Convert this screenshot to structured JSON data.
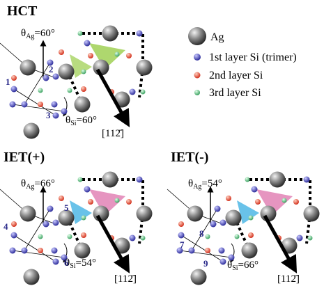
{
  "panels": [
    {
      "title": "HCT",
      "theta_ag": {
        "base": "θ",
        "sub": "Ag",
        "value": "=60°"
      },
      "theta_si": {
        "base": "θ",
        "sub": "Si",
        "value": "=60°"
      },
      "site_labels": [
        "1",
        "2",
        "3"
      ],
      "direction": "[112̄]"
    },
    {
      "title": "IET(+)",
      "theta_ag": {
        "base": "θ",
        "sub": "Ag",
        "value": "=66°"
      },
      "theta_si": {
        "base": "θ",
        "sub": "Si",
        "value": "=54°"
      },
      "site_labels": [
        "4",
        "5",
        "6"
      ],
      "direction": "[112̄]"
    },
    {
      "title": "IET(-)",
      "theta_ag": {
        "base": "θ",
        "sub": "Ag",
        "value": "=54°"
      },
      "theta_si": {
        "base": "θ",
        "sub": "Si",
        "value": "=66°"
      },
      "site_labels": [
        "7",
        "8",
        "9"
      ],
      "direction": "[112̄]"
    }
  ],
  "legend": [
    "Ag",
    "1st layer Si (trimer)",
    "2nd layer Si",
    "3rd layer Si"
  ]
}
